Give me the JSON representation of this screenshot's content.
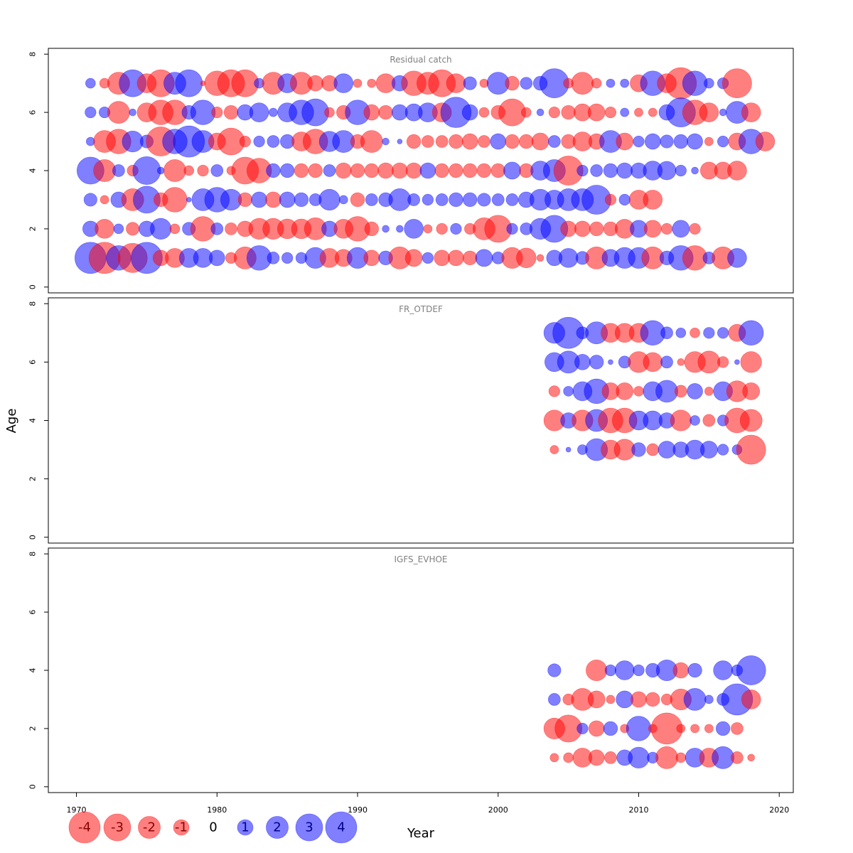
{
  "chart_data": {
    "type": "scatter",
    "subtype": "bubble",
    "xlabel": "Year",
    "ylabel": "Age",
    "xlim": [
      1968,
      2021
    ],
    "ylim": [
      -0.2,
      8.2
    ],
    "x_ticks": [
      1970,
      1980,
      1990,
      2000,
      2010,
      2020
    ],
    "y_ticks": [
      0,
      2,
      4,
      6,
      8
    ],
    "colors": {
      "positive": "#0000ff",
      "negative": "#ff0000",
      "opacity": 0.5
    },
    "legend": {
      "position": "bottom-left",
      "values": [
        -4,
        -3,
        -2,
        -1,
        0,
        1,
        2,
        3,
        4
      ],
      "labels": [
        "-4",
        "-3",
        "-2",
        "-1",
        "0",
        "1",
        "2",
        "3",
        "4"
      ]
    },
    "panels": [
      {
        "title": "Residual catch",
        "start_year": 1971,
        "ages": [
          7,
          6,
          5,
          4,
          3,
          2,
          1
        ],
        "residuals": [
          [
            0.4,
            -0.4,
            -2,
            3,
            -1.5,
            -3,
            2,
            3,
            -0.1,
            -2.5,
            -3,
            -3,
            0.4,
            -2,
            1.5,
            -2,
            -1,
            -1,
            1.5,
            -0.3,
            -0.3,
            -1.5,
            1,
            -2.5,
            -2,
            -3,
            -1.5,
            0.7,
            -0.3,
            2,
            -0.8,
            0.6,
            0.8,
            3.5,
            -0.4,
            -2,
            -0.4,
            0.3,
            0.3,
            -1.2,
            2.5,
            -1.5,
            -4,
            2.5,
            0.4,
            0.5,
            -3.5
          ],
          [
            0.5,
            0.5,
            -2,
            0.2,
            -1.5,
            -2.5,
            -2.5,
            0.8,
            2.5,
            -0.5,
            -0.8,
            1,
            1.5,
            0.3,
            1.5,
            2.5,
            3,
            -0.4,
            -0.8,
            2.5,
            -1,
            -0.8,
            1,
            1.2,
            1.5,
            -1.5,
            3.8,
            1,
            -0.4,
            -0.8,
            -3,
            -0.4,
            0.2,
            -0.5,
            -0.8,
            -1.2,
            -1.2,
            -0.5,
            0.3,
            -0.3,
            -0.3,
            1,
            3.5,
            -2.5,
            -1.5,
            0.2,
            2,
            -1.5
          ],
          [
            0.3,
            -2,
            -2.5,
            1.8,
            0.7,
            -3.5,
            2.5,
            4,
            2,
            -1.2,
            -3,
            -0.5,
            0.5,
            0.6,
            0.8,
            -1.5,
            -2.5,
            1.7,
            2,
            -0.8,
            -2,
            0.2,
            0.1,
            -0.8,
            -0.6,
            -0.6,
            -0.8,
            -1,
            -0.6,
            1,
            -0.8,
            -0.8,
            -1.2,
            0.6,
            -0.8,
            -1.5,
            -1,
            2,
            -1.2,
            0.5,
            1,
            0.7,
            0.8,
            1,
            -0.3,
            0.5,
            -1.2,
            2.5,
            -1.5
          ],
          [
            3,
            -2,
            0.6,
            -0.5,
            3.2,
            0.2,
            -2,
            -0.4,
            -0.5,
            0.6,
            -0.3,
            -3,
            -2.5,
            0.8,
            0.8,
            -0.8,
            -0.8,
            0.6,
            -1,
            -0.8,
            -0.8,
            -1,
            -1,
            -1,
            1,
            -0.8,
            -0.8,
            -0.8,
            -0.8,
            -0.8,
            1.2,
            -0.8,
            1.5,
            2,
            -3.5,
            0.5,
            0.6,
            0.8,
            1,
            1,
            1.5,
            1.4,
            0.5,
            0.2,
            -1.2,
            -1.2,
            -1.5
          ],
          [
            0.7,
            -0.3,
            1,
            -2,
            3,
            -0.8,
            -2.5,
            0.1,
            2,
            2.5,
            1.8,
            -0.8,
            1,
            -1,
            1,
            0.8,
            0.6,
            1.8,
            0.3,
            -0.8,
            0.6,
            0.8,
            2,
            0.6,
            0.5,
            0.6,
            0.8,
            0.8,
            0.7,
            0.6,
            0.6,
            1,
            1.8,
            1.5,
            2,
            2,
            3.5,
            -0.5,
            0.5,
            -1.5,
            -1.5
          ],
          [
            1,
            -1.5,
            0.4,
            -0.7,
            1,
            1.8,
            -0.4,
            0.7,
            -2.5,
            0.6,
            -0.6,
            -1,
            -1.8,
            -1.8,
            -1.6,
            -1.6,
            -2,
            1,
            -1.5,
            -2.5,
            -0.8,
            0.2,
            0.2,
            1.5,
            -0.3,
            -0.5,
            0.5,
            -0.5,
            -2,
            -3,
            0.5,
            0.6,
            1.8,
            3,
            -1,
            -1,
            -0.8,
            -0.8,
            -1.5,
            1.2,
            -1.2,
            -0.5,
            1.2,
            -0.5
          ],
          [
            4,
            -4,
            2.5,
            -3.5,
            4,
            -1,
            -1.5,
            1.5,
            1.5,
            1,
            -0.5,
            -2,
            2.5,
            0.6,
            0.5,
            0.5,
            1.8,
            -1.5,
            -1.2,
            1.8,
            -1,
            0.8,
            -2,
            -1.2,
            0.5,
            -1,
            -1,
            -0.8,
            1.2,
            0.6,
            -1.8,
            -1.6,
            -0.2,
            1,
            1.5,
            0.7,
            -2,
            1.2,
            1.8,
            1.8,
            -2,
            0.8,
            2.5,
            -2.5,
            0.6,
            -2,
            1.5
          ]
        ],
        "row_start_years": [
          1971,
          1971,
          1971,
          1971,
          1971,
          1971,
          1971
        ]
      },
      {
        "title": "FR_OTDEF",
        "start_year": 2004,
        "ages": [
          7,
          6,
          5,
          4,
          3
        ],
        "residuals": [
          [
            1.8,
            4,
            0.6,
            2,
            -1.5,
            -1.5,
            -1.5,
            2.5,
            0.6,
            0.4,
            -0.4,
            0.5,
            0.5,
            -1.2,
            2.5
          ],
          [
            1.5,
            2,
            1,
            0.8,
            0.1,
            0.6,
            -1.8,
            -1.5,
            0.6,
            -0.2,
            -1.8,
            -2,
            -0.5,
            0.1,
            -1.8
          ],
          [
            -0.5,
            0.4,
            1.5,
            2.5,
            -1.2,
            -1.2,
            -0.4,
            1.5,
            2,
            -0.6,
            1,
            -0.3,
            1.5,
            -1.8,
            -1.2
          ],
          [
            -1.8,
            1,
            -1.8,
            2,
            -2.5,
            -2.5,
            1.5,
            1.5,
            1,
            -1.8,
            0.4,
            -0.6,
            0.5,
            -2.5,
            -2
          ],
          [
            -0.3,
            0.1,
            0.4,
            2,
            -1.5,
            -1.8,
            0.8,
            -0.6,
            1.2,
            1,
            1.5,
            1.2,
            0.5,
            0.4,
            -3.5
          ]
        ]
      },
      {
        "title": "IGFS_EVHOE",
        "start_year": 2004,
        "ages": [
          4,
          3,
          2,
          1
        ],
        "residuals": [
          [
            0.7,
            0,
            0,
            -1.8,
            0.5,
            1.5,
            0.5,
            0.8,
            1.8,
            -1,
            0.8,
            0,
            1.5,
            0.5,
            3.5
          ],
          [
            0.6,
            -0.5,
            -2,
            -1.2,
            -0.3,
            1.2,
            -1,
            -0.8,
            -0.5,
            -1.8,
            2,
            0.3,
            0.6,
            4,
            -1.5
          ],
          [
            -1.8,
            -3,
            0.5,
            -1,
            0.8,
            -0.3,
            2.5,
            -0.3,
            -4,
            -0.3,
            -0.3,
            -0.3,
            0.8,
            -0.6
          ],
          [
            -0.3,
            -0.4,
            -1.5,
            -1,
            -0.6,
            1,
            1.8,
            0.5,
            -2,
            -0.4,
            1.5,
            -1.5,
            2,
            -0.6,
            -0.2
          ]
        ],
        "row_start_years": [
          2004,
          2004,
          2004,
          2004
        ]
      }
    ]
  }
}
